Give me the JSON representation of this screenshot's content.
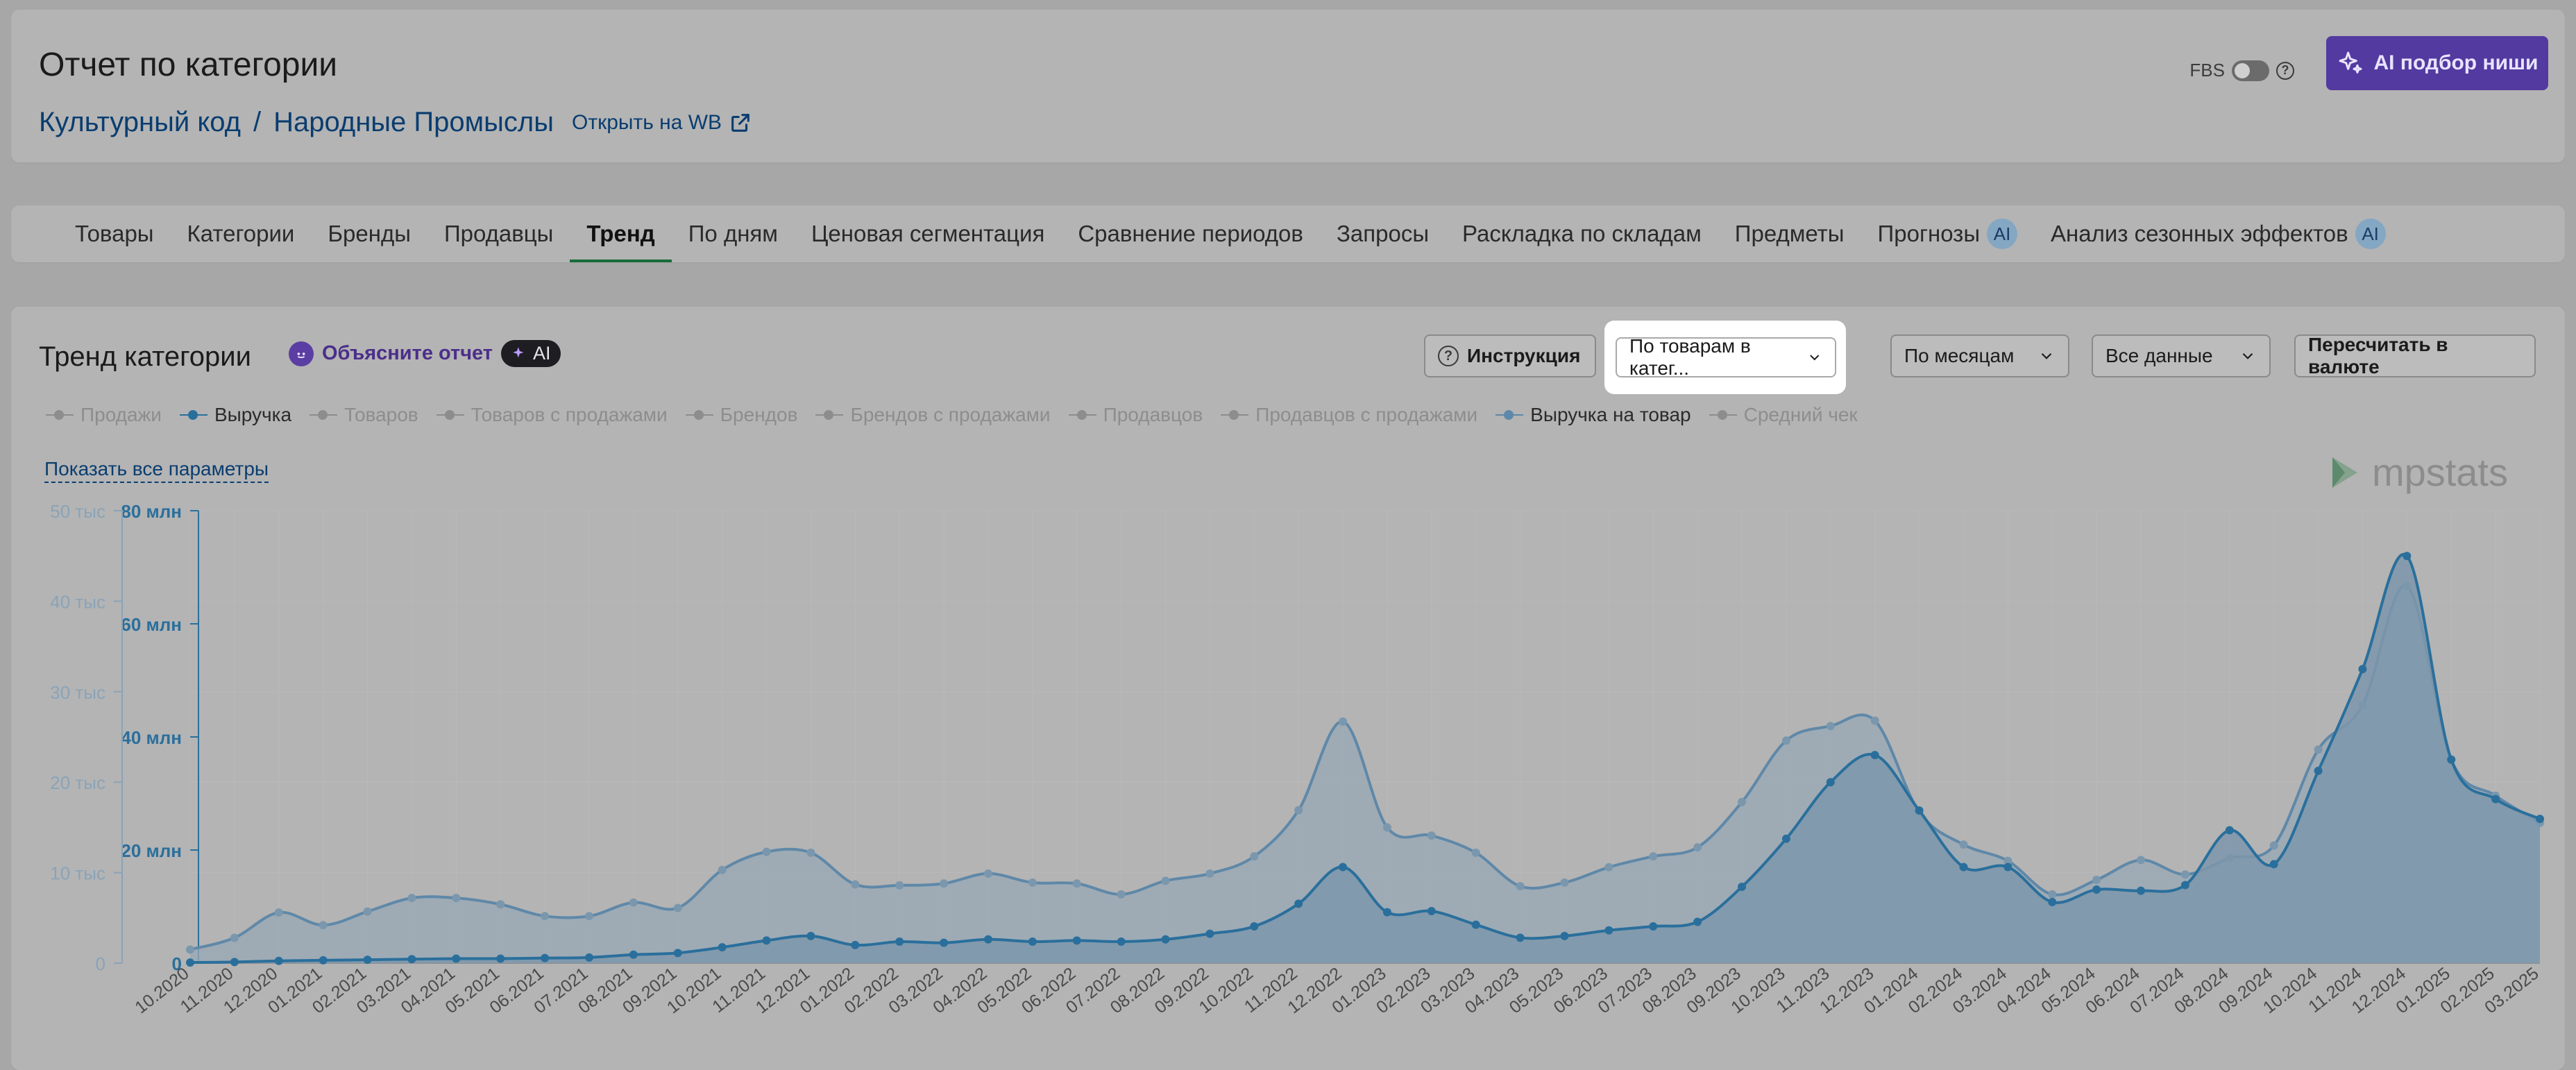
{
  "header": {
    "title": "Отчет по категории",
    "breadcrumb": [
      "Культурный код",
      "Народные Промыслы"
    ],
    "breadcrumb_sep": "/",
    "open_link": "Открыть на WB",
    "fbs_label": "FBS",
    "help_glyph": "?",
    "ai_button": "AI подбор ниши"
  },
  "tabs": [
    {
      "label": "Товары"
    },
    {
      "label": "Категории"
    },
    {
      "label": "Бренды"
    },
    {
      "label": "Продавцы"
    },
    {
      "label": "Тренд",
      "active": true
    },
    {
      "label": "По дням"
    },
    {
      "label": "Ценовая сегментация"
    },
    {
      "label": "Сравнение периодов"
    },
    {
      "label": "Запросы"
    },
    {
      "label": "Раскладка по складам"
    },
    {
      "label": "Предметы"
    },
    {
      "label": "Прогнозы",
      "badge": "AI"
    },
    {
      "label": "Анализ сезонных эффектов",
      "badge": "AI"
    }
  ],
  "trend": {
    "title": "Тренд категории",
    "explain": "Объясните отчет",
    "ai_chip": "AI",
    "instruction": "Инструкция",
    "segment_select": "По товарам в катег...",
    "period_select": "По месяцам",
    "data_select": "Все данные",
    "recalc": "Пересчитать в валюте",
    "show_all": "Показать все параметры",
    "logo": "mpstats"
  },
  "legend": [
    {
      "label": "Продажи",
      "on": false
    },
    {
      "label": "Выручка",
      "on": true,
      "color": "#2a6f9c"
    },
    {
      "label": "Товаров",
      "on": false
    },
    {
      "label": "Товаров с продажами",
      "on": false
    },
    {
      "label": "Брендов",
      "on": false
    },
    {
      "label": "Брендов с продажами",
      "on": false
    },
    {
      "label": "Продавцов",
      "on": false
    },
    {
      "label": "Продавцов с продажами",
      "on": false
    },
    {
      "label": "Выручка на товар",
      "on": true,
      "color": "#5f88a8"
    },
    {
      "label": "Средний чек",
      "on": false
    }
  ],
  "chart_data": {
    "type": "area",
    "x": [
      "10.2020",
      "11.2020",
      "12.2020",
      "01.2021",
      "02.2021",
      "03.2021",
      "04.2021",
      "05.2021",
      "06.2021",
      "07.2021",
      "08.2021",
      "09.2021",
      "10.2021",
      "11.2021",
      "12.2021",
      "01.2022",
      "02.2022",
      "03.2022",
      "04.2022",
      "05.2022",
      "06.2022",
      "07.2022",
      "08.2022",
      "09.2022",
      "10.2022",
      "11.2022",
      "12.2022",
      "01.2023",
      "02.2023",
      "03.2023",
      "04.2023",
      "05.2023",
      "06.2023",
      "07.2023",
      "08.2023",
      "09.2023",
      "10.2023",
      "11.2023",
      "12.2023",
      "01.2024",
      "02.2024",
      "03.2024",
      "04.2024",
      "05.2024",
      "06.2024",
      "07.2024",
      "08.2024",
      "09.2024",
      "10.2024",
      "11.2024",
      "12.2024",
      "01.2025",
      "02.2025",
      "03.2025"
    ],
    "series": [
      {
        "name": "Выручка",
        "axis": "left-inner",
        "color": "#2a6f9c",
        "values_mln": [
          0.1,
          0.2,
          0.4,
          0.5,
          0.6,
          0.7,
          0.8,
          0.8,
          0.9,
          1.0,
          1.5,
          1.8,
          2.8,
          4.0,
          4.8,
          3.2,
          3.8,
          3.6,
          4.2,
          3.8,
          4.0,
          3.8,
          4.2,
          5.2,
          6.5,
          10.5,
          17.0,
          9.0,
          9.2,
          6.8,
          4.5,
          4.8,
          5.8,
          6.5,
          7.3,
          13.5,
          22.0,
          32.0,
          36.8,
          27.0,
          17.0,
          17.0,
          10.8,
          13.0,
          12.8,
          13.8,
          23.5,
          17.5,
          34.0,
          52.0,
          72.0,
          36.0,
          29.0,
          25.5
        ]
      },
      {
        "name": "Выручка на товар",
        "axis": "left-outer",
        "color": "#5f88a8",
        "values_thousand": [
          1.5,
          2.8,
          5.6,
          4.2,
          5.7,
          7.2,
          7.2,
          6.5,
          5.2,
          5.2,
          6.7,
          6.1,
          10.3,
          12.3,
          12.2,
          8.7,
          8.6,
          8.8,
          9.9,
          8.9,
          8.8,
          7.6,
          9.1,
          9.9,
          11.8,
          16.9,
          26.7,
          15.0,
          14.1,
          12.2,
          8.5,
          8.9,
          10.6,
          11.8,
          12.8,
          17.8,
          24.6,
          26.2,
          26.8,
          16.7,
          13.1,
          11.3,
          7.6,
          9.2,
          11.4,
          9.8,
          11.6,
          13.0,
          23.6,
          28.5,
          41.7,
          22.5,
          18.5,
          15.5
        ]
      }
    ],
    "axes": {
      "left_outer": {
        "ticks": [
          "0",
          "10 тыс",
          "20 тыс",
          "30 тыс",
          "40 тыс",
          "50 тыс"
        ],
        "range": [
          0,
          50
        ]
      },
      "left_inner": {
        "ticks": [
          "0",
          "20 млн",
          "40 млн",
          "60 млн",
          "80 млн"
        ],
        "range": [
          0,
          80
        ]
      }
    },
    "grid": true
  }
}
